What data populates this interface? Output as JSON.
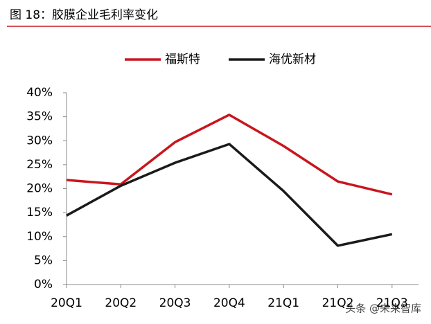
{
  "chart_data": {
    "type": "line",
    "title": "图 18：胶膜企业毛利率变化",
    "categories": [
      "20Q1",
      "20Q2",
      "20Q3",
      "20Q4",
      "21Q1",
      "21Q2",
      "21Q3"
    ],
    "series": [
      {
        "name": "福斯特",
        "color": "#c8161d",
        "values": [
          21.8,
          20.9,
          29.7,
          35.4,
          28.9,
          21.5,
          18.8
        ]
      },
      {
        "name": "海优新材",
        "color": "#1a1a1a",
        "values": [
          14.4,
          20.6,
          25.4,
          29.3,
          19.5,
          8.1,
          10.5
        ]
      }
    ],
    "ylim": [
      0,
      40
    ],
    "yticks": [
      {
        "value": 0,
        "label": "0%"
      },
      {
        "value": 5,
        "label": "5%"
      },
      {
        "value": 10,
        "label": "10%"
      },
      {
        "value": 15,
        "label": "15%"
      },
      {
        "value": 20,
        "label": "20%"
      },
      {
        "value": 25,
        "label": "25%"
      },
      {
        "value": 30,
        "label": "30%"
      },
      {
        "value": 35,
        "label": "35%"
      },
      {
        "value": 40,
        "label": "40%"
      }
    ],
    "legend": "top",
    "watermark": "头条 @未来智库"
  }
}
